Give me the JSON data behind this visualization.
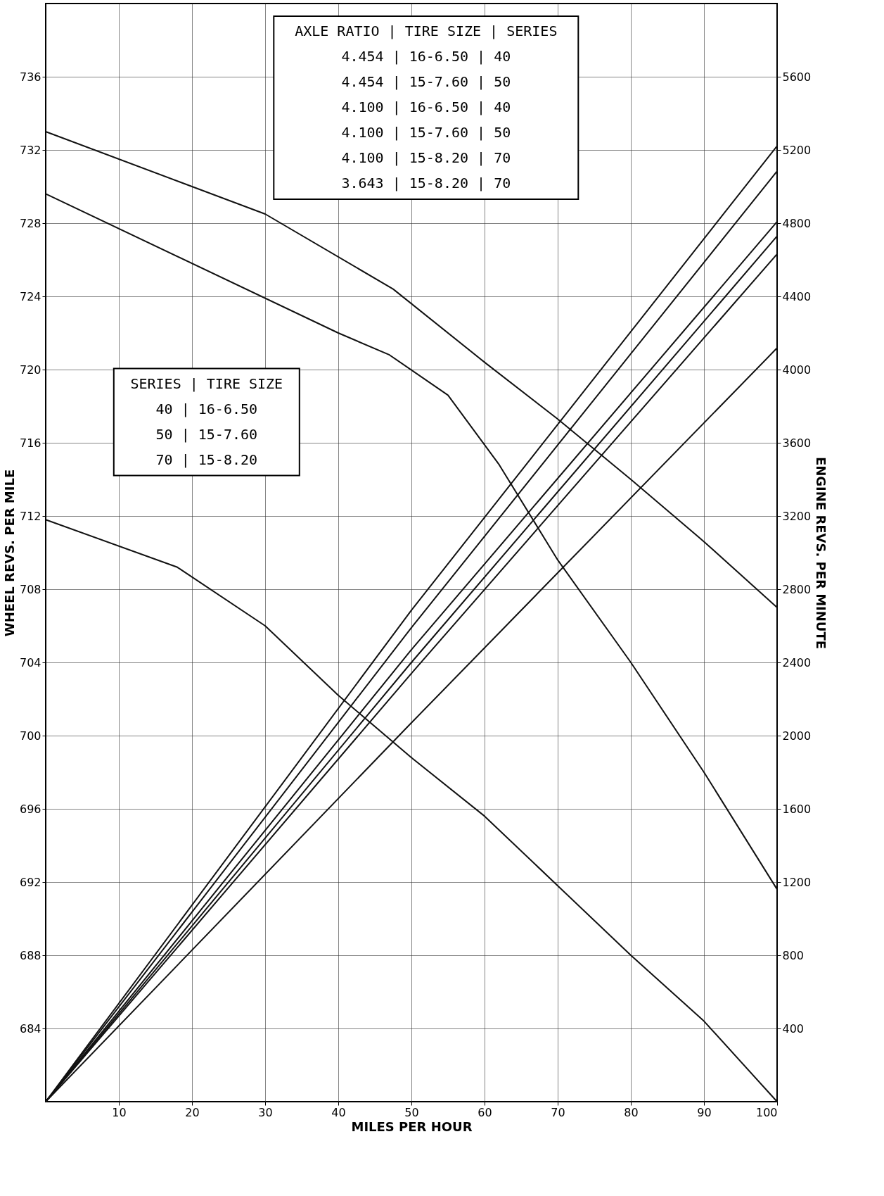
{
  "chart_data": {
    "type": "line",
    "xlabel": "MILES PER HOUR",
    "ylabel": "WHEEL REVS. PER MILE",
    "y2label": "ENGINE REVS. PER MINUTE",
    "xlim": [
      0,
      100
    ],
    "xticks": [
      10,
      20,
      30,
      40,
      50,
      60,
      70,
      80,
      90,
      100
    ],
    "ylim": [
      680,
      740
    ],
    "yticks": [
      684,
      688,
      692,
      696,
      700,
      704,
      708,
      712,
      716,
      720,
      724,
      728,
      732,
      736
    ],
    "y2lim": [
      0,
      6000
    ],
    "y2ticks": [
      400,
      800,
      1200,
      1600,
      2000,
      2400,
      2800,
      3200,
      3600,
      4000,
      4400,
      4800,
      5200,
      5600
    ],
    "grid": true,
    "marker": "none",
    "line_style": "solid",
    "series": [
      {
        "color": "#111111",
        "x": [
          0,
          30,
          47.5,
          60,
          70,
          80,
          90,
          100
        ],
        "values": [
          733,
          728.5,
          724.4,
          720.4,
          717.3,
          714,
          710.6,
          707
        ]
      },
      {
        "color": "#111111",
        "x": [
          0,
          40,
          47,
          55,
          62,
          70,
          80,
          90,
          100
        ],
        "values": [
          729.6,
          722,
          720.8,
          718.6,
          714.8,
          709.6,
          704,
          698,
          691.6
        ]
      },
      {
        "color": "#111111",
        "x": [
          0,
          18,
          30,
          40,
          50,
          60,
          70,
          80,
          90,
          100
        ],
        "values": [
          711.8,
          709.2,
          706,
          702.2,
          698.8,
          695.6,
          691.8,
          688,
          684.4,
          680
        ]
      },
      {
        "color": "#111111",
        "axis": "y2",
        "x": [
          0,
          50,
          100
        ],
        "values": [
          0,
          2685,
          5222
        ]
      },
      {
        "color": "#111111",
        "axis": "y2",
        "x": [
          0,
          50,
          100
        ],
        "values": [
          0,
          2590,
          5084
        ]
      },
      {
        "color": "#111111",
        "axis": "y2",
        "x": [
          0,
          50,
          100
        ],
        "values": [
          0,
          2470,
          4808
        ]
      },
      {
        "color": "#111111",
        "axis": "y2",
        "x": [
          0,
          50,
          100
        ],
        "values": [
          0,
          2400,
          4729
        ]
      },
      {
        "color": "#111111",
        "axis": "y2",
        "x": [
          0,
          50,
          100
        ],
        "values": [
          0,
          2340,
          4631
        ]
      },
      {
        "color": "#111111",
        "axis": "y2",
        "x": [
          0,
          50,
          100
        ],
        "values": [
          0,
          2070,
          4118
        ]
      }
    ],
    "annotations": [
      "AXLE RATIO | TIRE SIZE | SERIES",
      "4.454 | 16-6.50 | 40",
      "4.454 | 15-7.60 | 50",
      "4.100 | 16-6.50 | 40",
      "4.100 | 15-7.60 | 50",
      "4.100 | 15-8.20 | 70",
      "3.643 | 15-8.20 | 70",
      "SERIES | TIRE SIZE",
      "40 | 16-6.50",
      "50 | 15-7.60",
      "70 | 15-8.20"
    ]
  }
}
